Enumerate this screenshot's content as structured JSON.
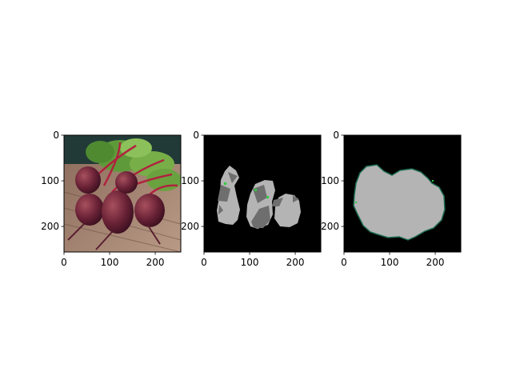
{
  "chart_data": [
    {
      "type": "image",
      "panel": "beet photograph",
      "xlim": [
        0,
        256
      ],
      "ylim": [
        256,
        0
      ],
      "xticks": [
        0,
        100,
        200
      ],
      "yticks": [
        0,
        100,
        200
      ]
    },
    {
      "type": "image",
      "panel": "segmentation mask",
      "xlim": [
        0,
        256
      ],
      "ylim": [
        256,
        0
      ],
      "xticks": [
        0,
        100,
        200
      ],
      "yticks": [
        0,
        100,
        200
      ]
    },
    {
      "type": "image",
      "panel": "outline mask",
      "xlim": [
        0,
        256
      ],
      "ylim": [
        256,
        0
      ],
      "xticks": [
        0,
        100,
        200
      ],
      "yticks": [
        0,
        100,
        200
      ]
    }
  ]
}
